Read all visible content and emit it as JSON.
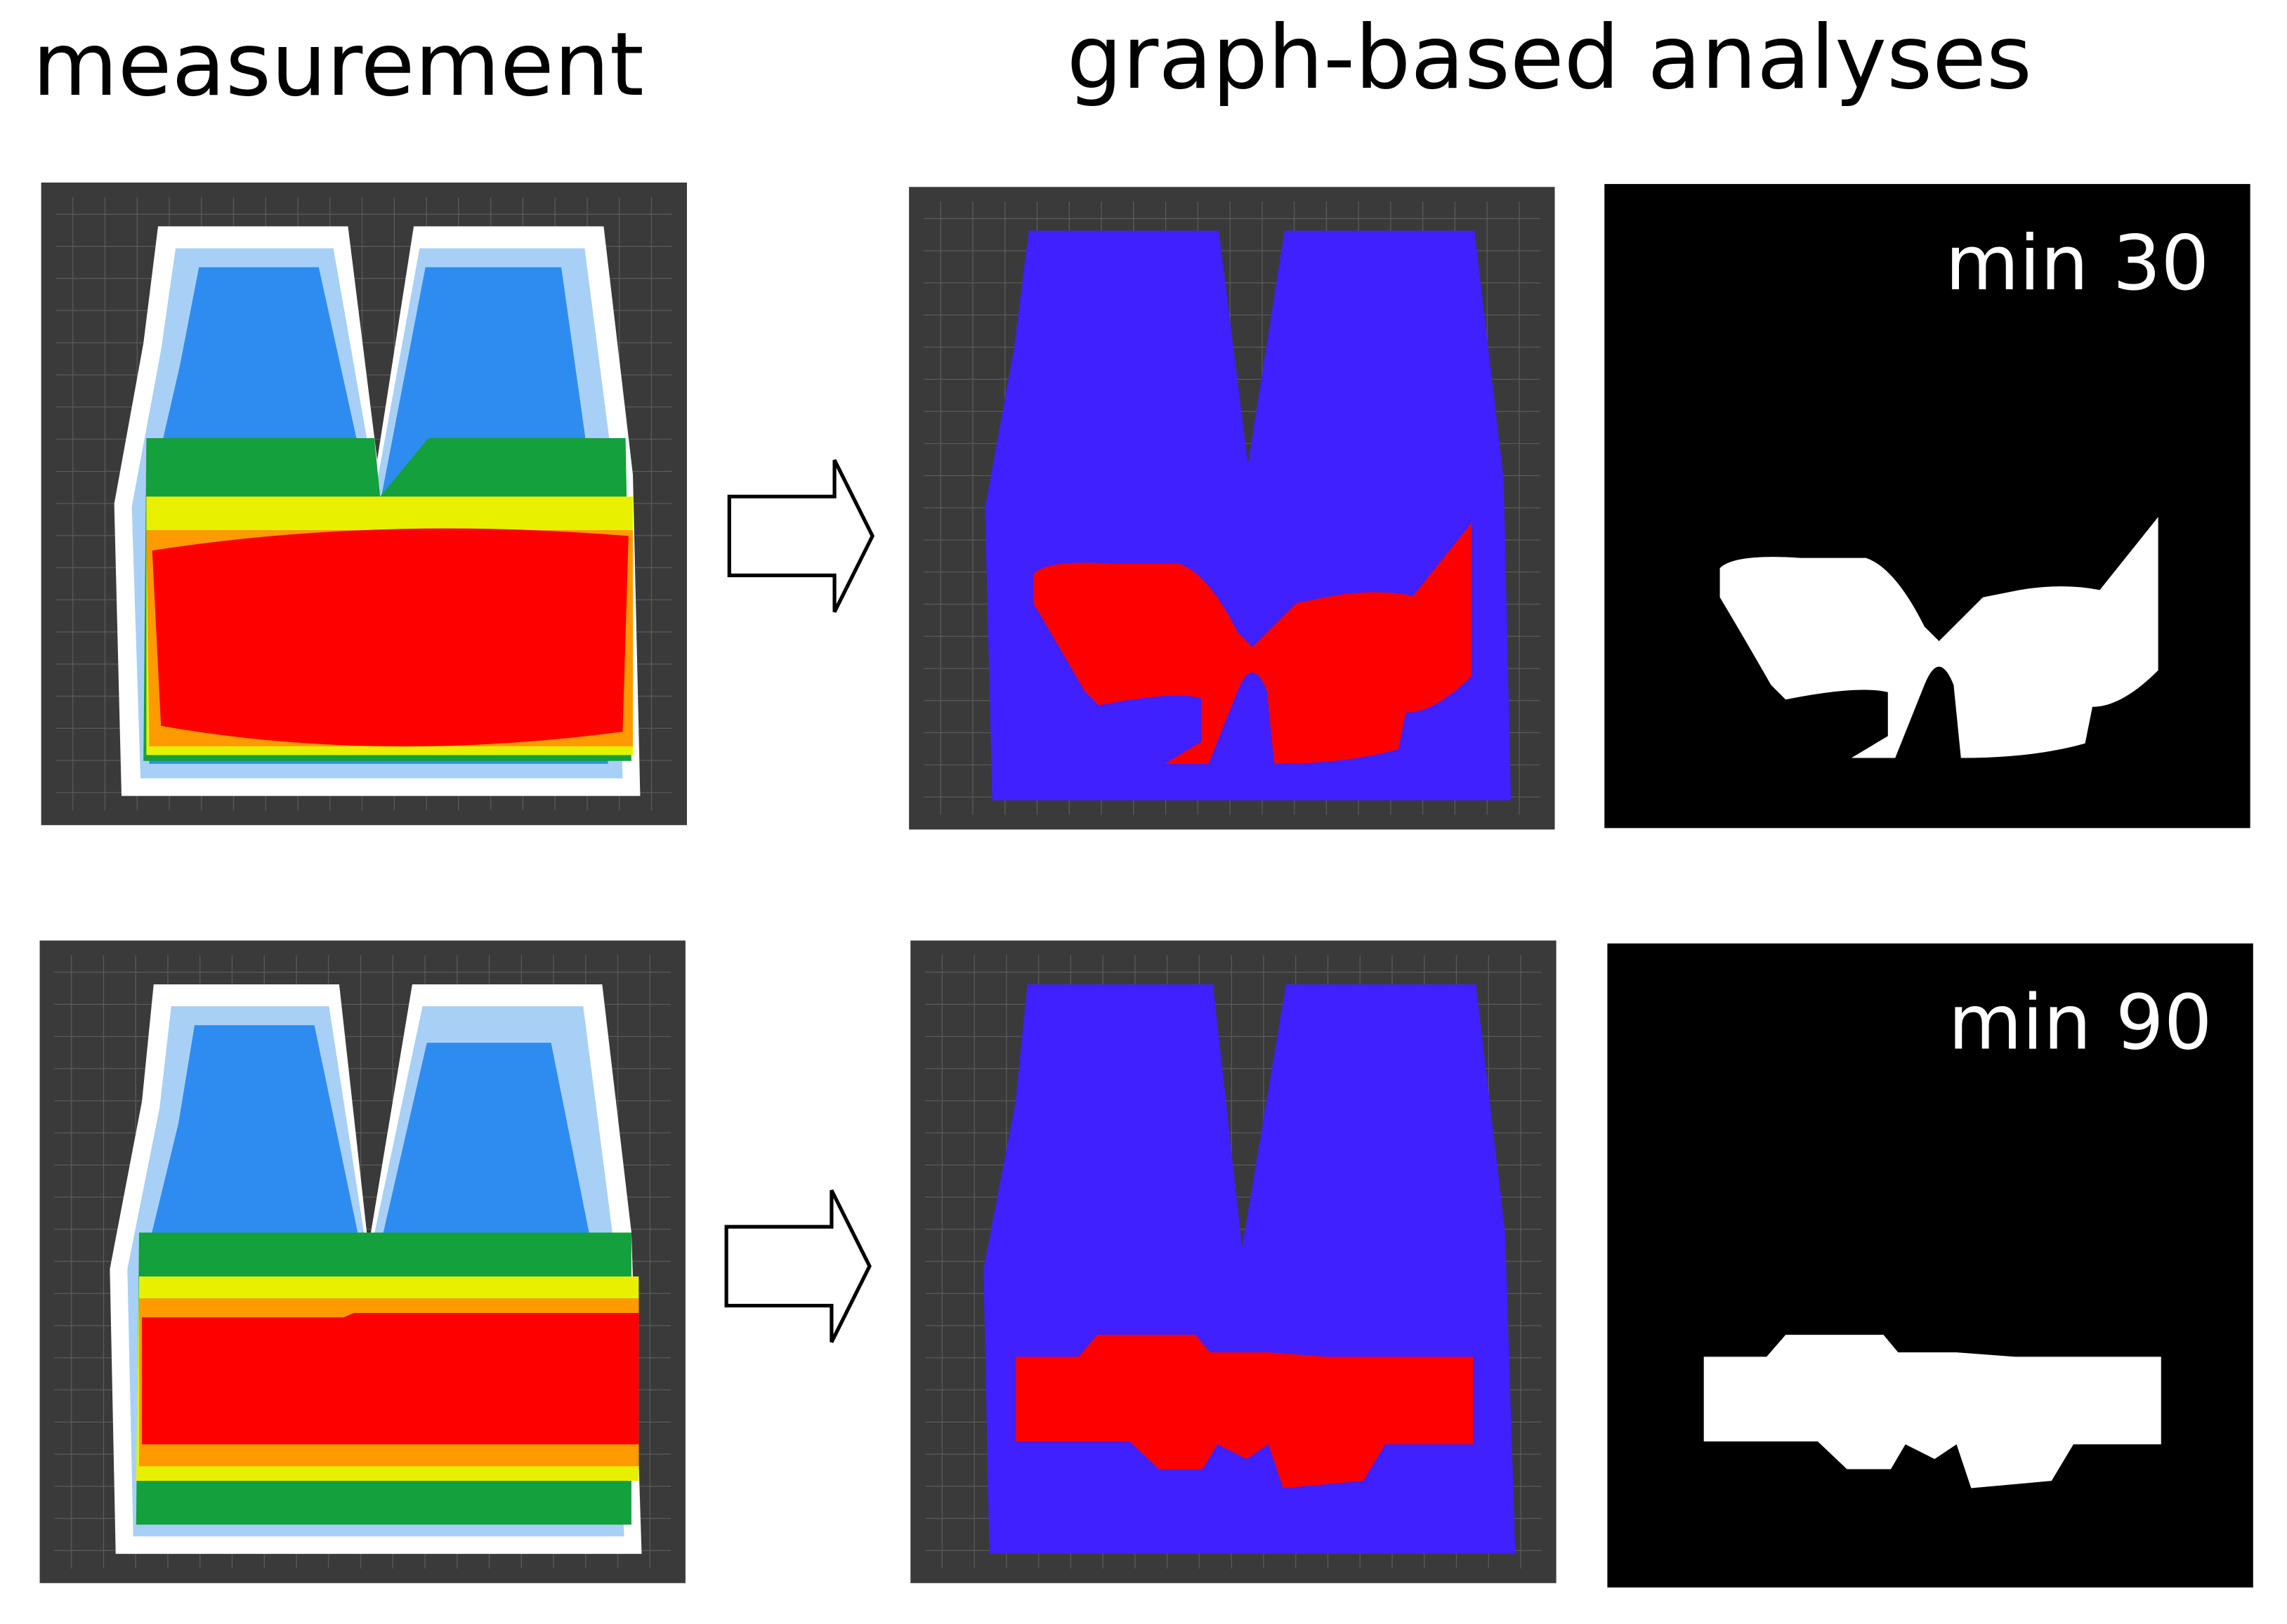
{
  "header": {
    "left": "measurement",
    "right": "graph-based analyses"
  },
  "rows": [
    {
      "label": "min 30"
    },
    {
      "label": "min 90"
    }
  ]
}
